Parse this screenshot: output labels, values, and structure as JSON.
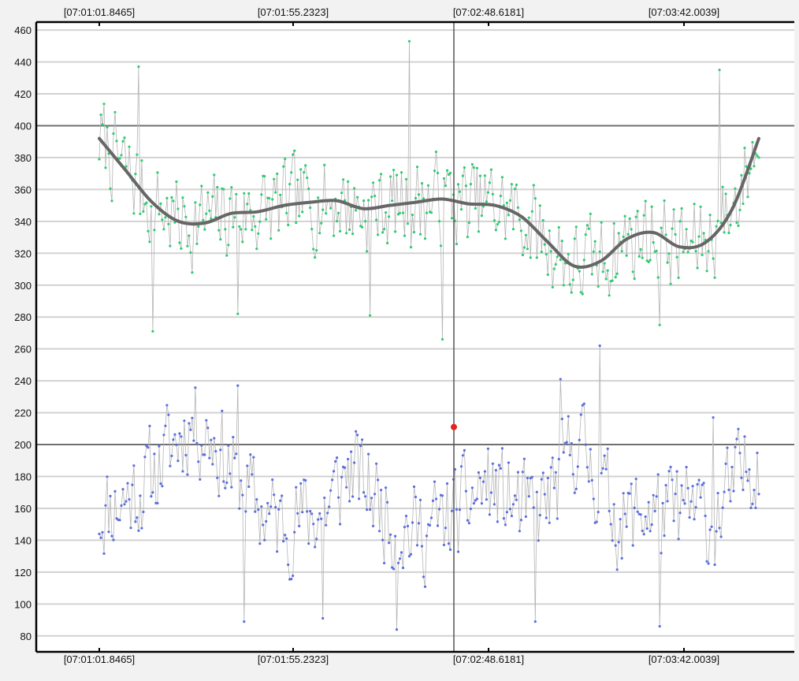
{
  "chart_data": {
    "type": "scatter",
    "title": "",
    "xlabel": "",
    "ylabel": "",
    "ylim": [
      70,
      465
    ],
    "y_ticks": [
      80,
      100,
      120,
      140,
      160,
      180,
      200,
      220,
      240,
      260,
      280,
      300,
      320,
      340,
      360,
      380,
      400,
      420,
      440,
      460
    ],
    "x_tick_labels": [
      "[07:01:01.8465]",
      "[07:01:55.2323]",
      "[07:02:48.6181]",
      "[07:03:42.0039]"
    ],
    "reference_lines": [
      400,
      200
    ],
    "cursor_x_label": "[07:02:48.6181]",
    "marker": {
      "x_label": "[07:02:48.6181]",
      "y": 211,
      "color": "#e8231e"
    },
    "grid": true,
    "colors": {
      "series_a": "#2ecc71",
      "series_b": "#5b6ee1",
      "connector": "#b5b5b5",
      "trend": "#666666",
      "reference": "#707070",
      "cursor": "#555555"
    },
    "series": [
      {
        "key": "upper",
        "center_profile": [
          392,
          372,
          352,
          340,
          339,
          345,
          346,
          350,
          352,
          353,
          348,
          350,
          352,
          354,
          351,
          350,
          343,
          327,
          312,
          315,
          329,
          333,
          324,
          327,
          348,
          392
        ],
        "spread": 24,
        "seed": 7,
        "extremes": [
          [
            0.47,
            453
          ],
          [
            0.06,
            437
          ],
          [
            0.94,
            435
          ],
          [
            0.52,
            266
          ],
          [
            0.08,
            271
          ],
          [
            0.21,
            282
          ],
          [
            0.41,
            281
          ],
          [
            0.85,
            275
          ]
        ]
      },
      {
        "key": "lower",
        "center_profile": [
          158,
          165,
          175,
          195,
          215,
          205,
          180,
          160,
          150,
          155,
          160,
          185,
          170,
          150,
          145,
          150,
          160,
          175,
          165,
          155,
          170,
          205,
          175,
          150,
          160,
          155,
          160,
          150,
          175,
          195
        ],
        "spread": 26,
        "seed": 11,
        "extremes": [
          [
            0.45,
            84
          ],
          [
            0.22,
            89
          ],
          [
            0.66,
            89
          ],
          [
            0.85,
            86
          ],
          [
            0.34,
            91
          ],
          [
            0.76,
            262
          ],
          [
            0.7,
            241
          ],
          [
            0.21,
            237
          ],
          [
            0.93,
            217
          ]
        ]
      }
    ],
    "trend_line": {
      "series": "upper",
      "values": [
        392,
        372,
        352,
        340,
        339,
        345,
        346,
        350,
        352,
        353,
        348,
        350,
        352,
        354,
        351,
        350,
        343,
        327,
        312,
        315,
        329,
        333,
        324,
        327,
        348,
        392
      ]
    }
  }
}
